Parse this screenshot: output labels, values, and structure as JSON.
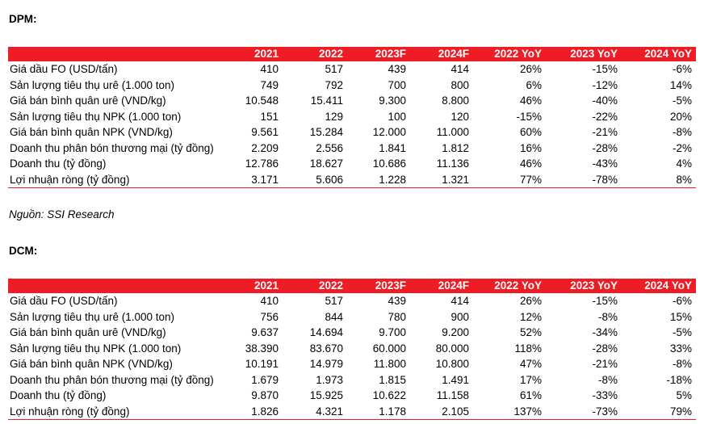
{
  "sections": [
    {
      "title": "DPM:",
      "headers": [
        "",
        "2021",
        "2022",
        "2023F",
        "2024F",
        "2022 YoY",
        "2023 YoY",
        "2024 YoY"
      ],
      "rows": [
        [
          "Giá dầu FO (USD/tấn)",
          "410",
          "517",
          "439",
          "414",
          "26%",
          "-15%",
          "-6%"
        ],
        [
          "Sản lượng tiêu thụ urê (1.000 ton)",
          "749",
          "792",
          "700",
          "800",
          "6%",
          "-12%",
          "14%"
        ],
        [
          "Giá bán bình quân urê (VND/kg)",
          "10.548",
          "15.411",
          "9.300",
          "8.800",
          "46%",
          "-40%",
          "-5%"
        ],
        [
          "Sản lượng tiêu thụ NPK (1.000 ton)",
          "151",
          "129",
          "100",
          "120",
          "-15%",
          "-22%",
          "20%"
        ],
        [
          "Giá bán bình quân NPK (VND/kg)",
          "9.561",
          "15.284",
          "12.000",
          "11.000",
          "60%",
          "-21%",
          "-8%"
        ],
        [
          "Doanh thu phân bón thương mại (tỷ đồng)",
          "2.209",
          "2.556",
          "1.841",
          "1.812",
          "16%",
          "-28%",
          "-2%"
        ],
        [
          "Doanh thu (tỷ đồng)",
          "12.786",
          "18.627",
          "10.686",
          "11.136",
          "46%",
          "-43%",
          "4%"
        ],
        [
          "Lợi nhuận ròng (tỷ đồng)",
          "3.171",
          "5.606",
          "1.228",
          "1.321",
          "77%",
          "-78%",
          "8%"
        ]
      ]
    },
    {
      "title": "DCM:",
      "headers": [
        "",
        "2021",
        "2022",
        "2023F",
        "2024F",
        "2022 YoY",
        "2023 YoY",
        "2024 YoY"
      ],
      "rows": [
        [
          "Giá dầu FO (USD/tấn)",
          "410",
          "517",
          "439",
          "414",
          "26%",
          "-15%",
          "-6%"
        ],
        [
          "Sản lượng tiêu thụ urê (1.000 ton)",
          "756",
          "844",
          "780",
          "900",
          "12%",
          "-8%",
          "15%"
        ],
        [
          "Giá bán bình quân urê (VND/kg)",
          "9.637",
          "14.694",
          "9.700",
          "9.200",
          "52%",
          "-34%",
          "-5%"
        ],
        [
          "Sản lượng tiêu thụ NPK (1.000 ton)",
          "38.390",
          "83.670",
          "60.000",
          "80.000",
          "118%",
          "-28%",
          "33%"
        ],
        [
          "Giá bán bình quân NPK (VND/kg)",
          "10.191",
          "14.979",
          "11.800",
          "10.800",
          "47%",
          "-21%",
          "-8%"
        ],
        [
          "Doanh thu phân bón thương mại (tỷ đồng)",
          "1.679",
          "1.973",
          "1.815",
          "1.491",
          "17%",
          "-8%",
          "-18%"
        ],
        [
          "Doanh thu (tỷ đồng)",
          "9.870",
          "15.925",
          "10.622",
          "11.158",
          "61%",
          "-33%",
          "5%"
        ],
        [
          "Lợi nhuận ròng (tỷ đồng)",
          "1.826",
          "4.321",
          "1.178",
          "2.105",
          "137%",
          "-73%",
          "79%"
        ]
      ]
    }
  ],
  "source_note": "Nguồn: SSI Research"
}
